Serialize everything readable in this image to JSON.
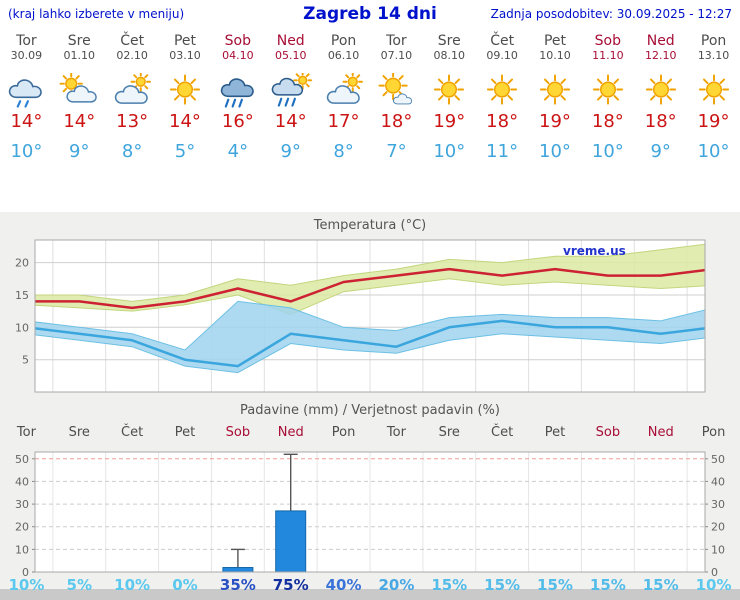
{
  "header": {
    "left_note": "(kraj lahko izberete v meniju)",
    "title": "Zagreb 14 dni",
    "last_update": "Zadnja posodobitev: 30.09.2025 - 12:27"
  },
  "colors": {
    "header_blue": "#0011cc",
    "weekday": "#4d4d4d",
    "weekend": "#a80d35",
    "tmax_red": "#cc1414",
    "tmin_blue": "#3fa5dd",
    "chart_title_gray": "#555555",
    "watermark_blue": "#2233cc",
    "precip_bar_blue": "#2288dd"
  },
  "days": [
    {
      "name": "Tor",
      "date": "30.09",
      "weekend": false,
      "icon": "rain",
      "tmax": "14°",
      "tmin": "10°"
    },
    {
      "name": "Sre",
      "date": "01.10",
      "weekend": false,
      "icon": "sun-cloud",
      "tmax": "14°",
      "tmin": "9°"
    },
    {
      "name": "Čet",
      "date": "02.10",
      "weekend": false,
      "icon": "cloud-sun",
      "tmax": "13°",
      "tmin": "8°"
    },
    {
      "name": "Pet",
      "date": "03.10",
      "weekend": false,
      "icon": "sunny",
      "tmax": "14°",
      "tmin": "5°"
    },
    {
      "name": "Sob",
      "date": "04.10",
      "weekend": true,
      "icon": "heavy-rain",
      "tmax": "16°",
      "tmin": "4°"
    },
    {
      "name": "Ned",
      "date": "05.10",
      "weekend": true,
      "icon": "sun-rain",
      "tmax": "14°",
      "tmin": "9°"
    },
    {
      "name": "Pon",
      "date": "06.10",
      "weekend": false,
      "icon": "cloud-sun",
      "tmax": "17°",
      "tmin": "8°"
    },
    {
      "name": "Tor",
      "date": "07.10",
      "weekend": false,
      "icon": "sun-small-cloud",
      "tmax": "18°",
      "tmin": "7°"
    },
    {
      "name": "Sre",
      "date": "08.10",
      "weekend": false,
      "icon": "sunny",
      "tmax": "19°",
      "tmin": "10°"
    },
    {
      "name": "Čet",
      "date": "09.10",
      "weekend": false,
      "icon": "sunny",
      "tmax": "18°",
      "tmin": "11°"
    },
    {
      "name": "Pet",
      "date": "10.10",
      "weekend": false,
      "icon": "sunny",
      "tmax": "19°",
      "tmin": "10°"
    },
    {
      "name": "Sob",
      "date": "11.10",
      "weekend": true,
      "icon": "sunny",
      "tmax": "18°",
      "tmin": "10°"
    },
    {
      "name": "Ned",
      "date": "12.10",
      "weekend": true,
      "icon": "sunny",
      "tmax": "18°",
      "tmin": "9°"
    },
    {
      "name": "Pon",
      "date": "13.10",
      "weekend": false,
      "icon": "sunny",
      "tmax": "19°",
      "tmin": "10°"
    }
  ],
  "chart_data": [
    {
      "type": "line",
      "title": "Temperatura (°C)",
      "watermark": "vreme.us",
      "x_labels": [
        "Tor",
        "Sre",
        "Čet",
        "Pet",
        "Sob",
        "Ned",
        "Pon",
        "Tor",
        "Sre",
        "Čet",
        "Pet",
        "Sob",
        "Ned",
        "Pon"
      ],
      "ylim": [
        0,
        23.5
      ],
      "yticks": [
        5,
        10,
        15,
        20
      ],
      "grid": true,
      "legend": "none",
      "series": [
        {
          "name": "max",
          "color": "#cc2233",
          "values": [
            14,
            14,
            13,
            14,
            16,
            14,
            17,
            18,
            19,
            18,
            19,
            18,
            18,
            19
          ],
          "band_high": [
            15,
            15,
            14,
            15,
            17.5,
            16.5,
            18,
            19,
            20.5,
            20,
            21,
            21,
            22,
            23
          ],
          "band_low": [
            13.5,
            13,
            12.5,
            13.5,
            15,
            12,
            15.5,
            16.5,
            17.5,
            16.5,
            17,
            16.5,
            16,
            16.5
          ],
          "band_color": "#dce9a2",
          "band_edge": "#c2d67e"
        },
        {
          "name": "min",
          "color": "#3aa6dd",
          "values": [
            10,
            9,
            8,
            5,
            4,
            9,
            8,
            7,
            10,
            11,
            10,
            10,
            9,
            10
          ],
          "band_high": [
            11,
            10,
            9,
            6.5,
            14,
            13,
            10,
            9.5,
            11.5,
            12,
            11.5,
            11.5,
            11,
            13
          ],
          "band_low": [
            9,
            8,
            7,
            4,
            3,
            7.5,
            6.5,
            6,
            8,
            9,
            8.5,
            8,
            7.5,
            8.5
          ],
          "band_color": "#9fd4ee",
          "band_edge": "#6cc0e4"
        }
      ]
    },
    {
      "type": "bar",
      "title": "Padavine (mm) / Verjetnost padavin (%)",
      "categories": [
        "Tor",
        "Sre",
        "Čet",
        "Pet",
        "Sob",
        "Ned",
        "Pon",
        "Tor",
        "Sre",
        "Čet",
        "Pet",
        "Sob",
        "Ned",
        "Pon"
      ],
      "weekend_flags": [
        false,
        false,
        false,
        false,
        true,
        true,
        false,
        false,
        false,
        false,
        false,
        true,
        true,
        false
      ],
      "values": [
        0,
        0,
        0,
        0,
        2,
        27,
        0,
        0,
        0,
        0,
        0,
        0,
        0,
        0
      ],
      "whisker_low": [
        0,
        0,
        0,
        0,
        0,
        5,
        0,
        0,
        0,
        0,
        0,
        0,
        0,
        0
      ],
      "whisker_high": [
        0,
        0,
        0,
        0,
        10,
        52,
        0,
        0,
        0,
        0,
        0,
        0,
        0,
        0
      ],
      "ylim": [
        0,
        53
      ],
      "yticks": [
        0,
        10,
        20,
        30,
        40,
        50
      ],
      "bar_color": "#2288dd",
      "bar_edge": "#1668a8",
      "probabilities": [
        {
          "label": "10%",
          "color": "#5bc8ee"
        },
        {
          "label": "5%",
          "color": "#5bc8ee"
        },
        {
          "label": "10%",
          "color": "#5bc8ee"
        },
        {
          "label": "0%",
          "color": "#5bc8ee"
        },
        {
          "label": "35%",
          "color": "#2a52c4"
        },
        {
          "label": "75%",
          "color": "#12309e"
        },
        {
          "label": "40%",
          "color": "#3a74d8"
        },
        {
          "label": "20%",
          "color": "#49a8e4"
        },
        {
          "label": "15%",
          "color": "#54bce9"
        },
        {
          "label": "15%",
          "color": "#54bce9"
        },
        {
          "label": "15%",
          "color": "#54bce9"
        },
        {
          "label": "15%",
          "color": "#54bce9"
        },
        {
          "label": "15%",
          "color": "#54bce9"
        },
        {
          "label": "10%",
          "color": "#5bc8ee"
        }
      ]
    }
  ]
}
